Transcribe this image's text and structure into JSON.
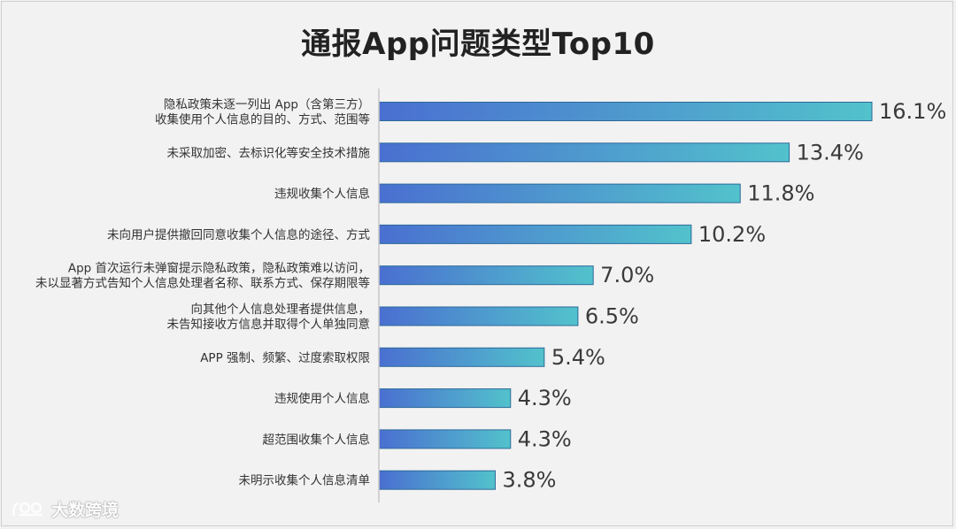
{
  "chart_data": {
    "type": "bar",
    "orientation": "horizontal",
    "title": "通报App问题类型Top10",
    "categories": [
      [
        "隐私政策未逐一列出 App（含第三方）",
        "收集使用个人信息的目的、方式、范围等"
      ],
      [
        "未采取加密、去标识化等安全技术措施"
      ],
      [
        "违规收集个人信息"
      ],
      [
        "未向用户提供撤回同意收集个人信息的途径、方式"
      ],
      [
        "App 首次运行未弹窗提示隐私政策，隐私政策难以访问，",
        "未以显著方式告知个人信息处理者名称、联系方式、保存期限等"
      ],
      [
        "向其他个人信息处理者提供信息，",
        "未告知接收方信息并取得个人单独同意"
      ],
      [
        "APP 强制、频繁、过度索取权限"
      ],
      [
        "违规使用个人信息"
      ],
      [
        "超范围收集个人信息"
      ],
      [
        "未明示收集个人信息清单"
      ]
    ],
    "values": [
      16.1,
      13.4,
      11.8,
      10.2,
      7.0,
      6.5,
      5.4,
      4.3,
      4.3,
      3.8
    ],
    "value_labels": [
      "16.1%",
      "13.4%",
      "11.8%",
      "10.2%",
      "7.0%",
      "6.5%",
      "5.4%",
      "4.3%",
      "4.3%",
      "3.8%"
    ],
    "xlim": [
      0,
      16.1
    ],
    "grid": false,
    "legend": "none",
    "colors": {
      "bar_start": "#4a6fd0",
      "bar_end": "#52c2cc",
      "bar_border": "#2c6a9a",
      "axis": "#c8c8c8"
    }
  },
  "watermark": {
    "text": "大数跨境",
    "icon": "logo-icon"
  }
}
